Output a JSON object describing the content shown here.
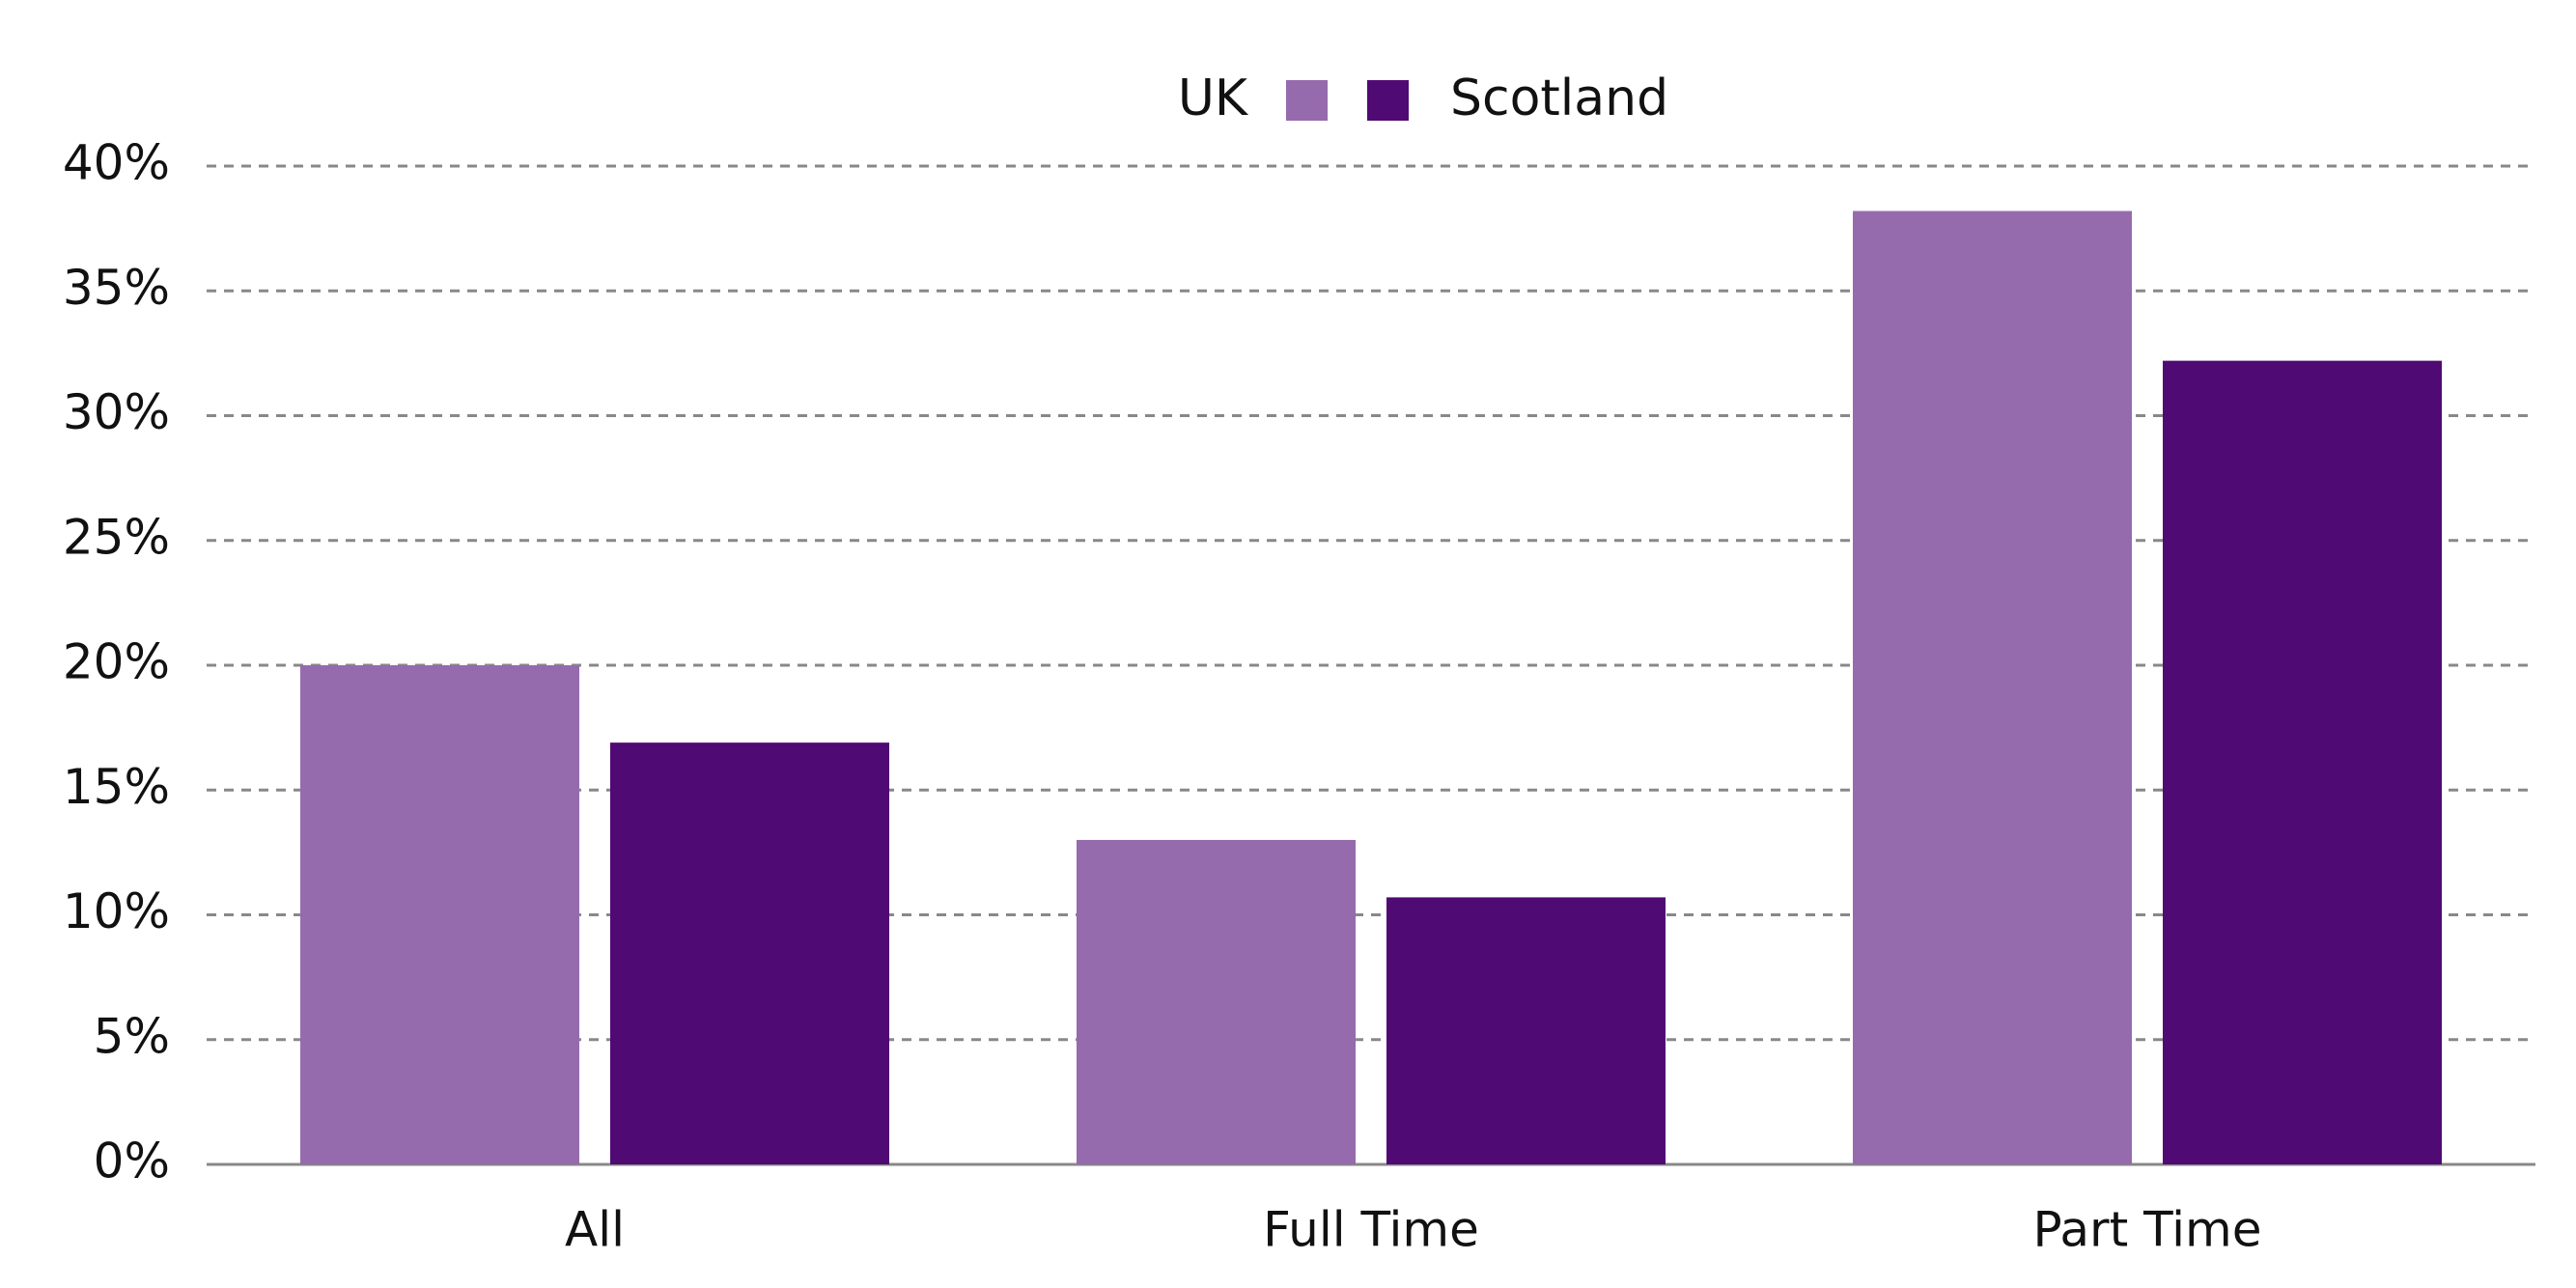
{
  "chart_data": {
    "type": "bar",
    "categories": [
      "All",
      "Full Time",
      "Part Time"
    ],
    "series": [
      {
        "name": "UK",
        "color": "#956bad",
        "values": [
          20.0,
          13.0,
          38.2
        ]
      },
      {
        "name": "Scotland",
        "color": "#500a73",
        "values": [
          16.9,
          10.7,
          32.2
        ]
      }
    ],
    "ylim": [
      0,
      40
    ],
    "yticks": [
      {
        "value": 0,
        "label": "0%"
      },
      {
        "value": 5,
        "label": "5%"
      },
      {
        "value": 10,
        "label": "10%"
      },
      {
        "value": 15,
        "label": "15%"
      },
      {
        "value": 20,
        "label": "20%"
      },
      {
        "value": 25,
        "label": "25%"
      },
      {
        "value": 30,
        "label": "30%"
      },
      {
        "value": 35,
        "label": "35%"
      },
      {
        "value": 40,
        "label": "40%"
      }
    ],
    "grid": true
  }
}
